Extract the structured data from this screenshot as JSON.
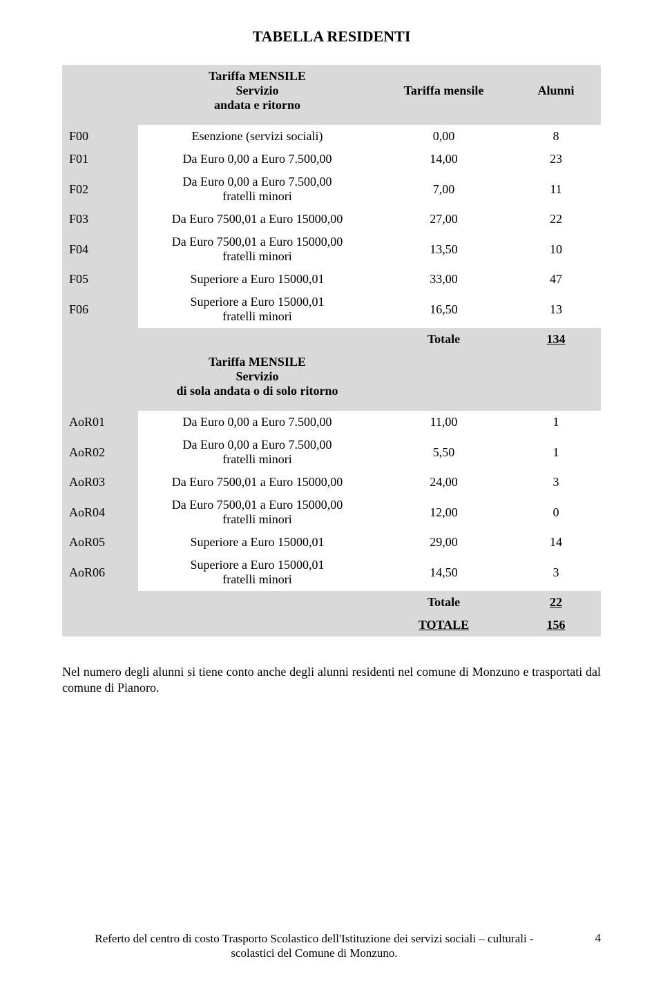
{
  "title": "TABELLA  RESIDENTI",
  "colors": {
    "shade": "#d9d9d9",
    "background": "#ffffff",
    "text": "#000000"
  },
  "header1": {
    "desc_line1": "Tariffa MENSILE",
    "desc_line2": "Servizio",
    "desc_line3": "andata e ritorno",
    "col3": "Tariffa mensile",
    "col4": "Alunni"
  },
  "rowsA": [
    {
      "code": "F00",
      "desc": "Esenzione (servizi sociali)",
      "val": "0,00",
      "cnt": "8"
    },
    {
      "code": "F01",
      "desc": "Da Euro 0,00 a Euro 7.500,00",
      "val": "14,00",
      "cnt": "23"
    },
    {
      "code": "F02",
      "desc": "Da Euro 0,00 a Euro 7.500,00\nfratelli minori",
      "val": "7,00",
      "cnt": "11"
    },
    {
      "code": "F03",
      "desc": "Da Euro 7500,01 a Euro 15000,00",
      "val": "27,00",
      "cnt": "22"
    },
    {
      "code": "F04",
      "desc": "Da Euro 7500,01 a Euro 15000,00\nfratelli minori",
      "val": "13,50",
      "cnt": "10"
    },
    {
      "code": "F05",
      "desc": "Superiore a Euro 15000,01",
      "val": "33,00",
      "cnt": "47"
    },
    {
      "code": "F06",
      "desc": "Superiore a Euro 15000,01\nfratelli minori",
      "val": "16,50",
      "cnt": "13"
    }
  ],
  "totalA": {
    "label": "Totale",
    "value": "134"
  },
  "header2": {
    "desc_line1": "Tariffa MENSILE",
    "desc_line2": "Servizio",
    "desc_line3": "di sola  andata o di solo  ritorno"
  },
  "rowsB": [
    {
      "code": "AoR01",
      "desc": "Da Euro 0,00 a Euro 7.500,00",
      "val": "11,00",
      "cnt": "1"
    },
    {
      "code": "AoR02",
      "desc": "Da Euro 0,00 a Euro 7.500,00\nfratelli minori",
      "val": "5,50",
      "cnt": "1"
    },
    {
      "code": "AoR03",
      "desc": "Da Euro 7500,01 a Euro 15000,00",
      "val": "24,00",
      "cnt": "3"
    },
    {
      "code": "AoR04",
      "desc": "Da Euro 7500,01 a Euro 15000,00\nfratelli minori",
      "val": "12,00",
      "cnt": "0"
    },
    {
      "code": "AoR05",
      "desc": "Superiore a Euro 15000,01",
      "val": "29,00",
      "cnt": "14"
    },
    {
      "code": "AoR06",
      "desc": "Superiore a Euro 15000,01\nfratelli minori",
      "val": "14,50",
      "cnt": "3"
    }
  ],
  "totalB": {
    "label": "Totale",
    "value": "22"
  },
  "grand": {
    "label": "TOTALE",
    "value": "156"
  },
  "note": "Nel numero degli alunni si tiene conto anche degli alunni residenti nel comune di Monzuno e trasportati dal comune di Pianoro.",
  "footer": {
    "line1": "Referto del centro di costo Trasporto Scolastico dell'Istituzione  dei servizi sociali – culturali -",
    "line2": "scolastici del Comune di Monzuno.",
    "page": "4"
  }
}
